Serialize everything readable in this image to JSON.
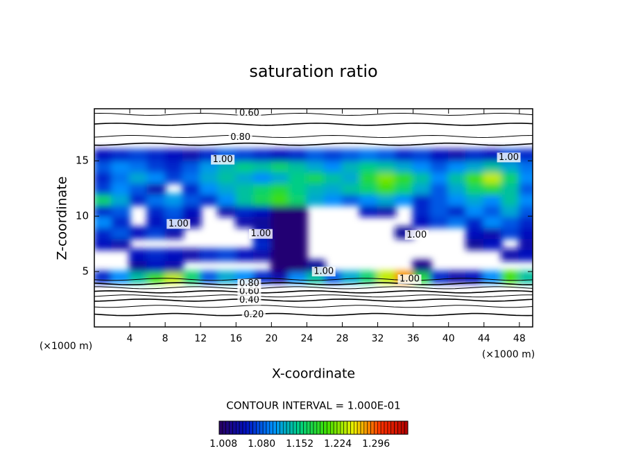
{
  "chart_data": {
    "type": "contour",
    "title": "saturation ratio",
    "xlabel": "X-coordinate",
    "ylabel": "Z-coordinate",
    "x_unit": "(×1000 m)",
    "xlim": [
      0,
      49.5
    ],
    "ylim": [
      0,
      19.7
    ],
    "xticks": [
      4,
      8,
      12,
      16,
      20,
      24,
      28,
      32,
      36,
      40,
      44,
      48
    ],
    "yticks": [
      5,
      10,
      15
    ],
    "grid_x": [
      1,
      3,
      5,
      7,
      9,
      11,
      13,
      15,
      17,
      19,
      21,
      23,
      25,
      27,
      29,
      31,
      33,
      35,
      37,
      39,
      41,
      43,
      45,
      47,
      49
    ],
    "grid_z": [
      4.5,
      5.5,
      6.5,
      7.5,
      8.5,
      9.5,
      10.5,
      11.5,
      12.5,
      13.5,
      14.5,
      15.5
    ],
    "field": [
      [
        1.06,
        1.1,
        1.14,
        1.2,
        1.24,
        1.16,
        1.08,
        1.12,
        1.1,
        1.06,
        1.04,
        1.1,
        1.14,
        1.08,
        1.12,
        1.16,
        1.24,
        1.28,
        1.18,
        1.06,
        1.04,
        1.05,
        1.1,
        1.2,
        1.14
      ],
      [
        null,
        null,
        1.03,
        1.05,
        1.04,
        null,
        null,
        null,
        null,
        null,
        1.01,
        1.01,
        1.03,
        null,
        null,
        null,
        null,
        null,
        1.02,
        null,
        null,
        null,
        null,
        null,
        null
      ],
      [
        null,
        null,
        1.05,
        1.06,
        1.05,
        1.04,
        1.06,
        1.07,
        1.05,
        1.04,
        1.01,
        1.01,
        null,
        null,
        null,
        null,
        null,
        null,
        null,
        null,
        null,
        null,
        null,
        1.04,
        1.05
      ],
      [
        1.05,
        1.04,
        null,
        null,
        null,
        null,
        null,
        null,
        null,
        1.06,
        1.01,
        1.01,
        null,
        null,
        null,
        null,
        null,
        null,
        null,
        null,
        null,
        1.03,
        1.05,
        null,
        1.04
      ],
      [
        1.06,
        1.08,
        1.05,
        1.07,
        1.04,
        null,
        null,
        null,
        null,
        1.04,
        1.01,
        1.01,
        null,
        null,
        null,
        null,
        null,
        1.03,
        null,
        null,
        null,
        1.05,
        1.04,
        1.07,
        1.05
      ],
      [
        1.1,
        1.06,
        null,
        1.05,
        1.07,
        1.04,
        null,
        null,
        1.04,
        1.03,
        1.01,
        1.01,
        null,
        null,
        null,
        null,
        null,
        null,
        1.05,
        1.07,
        1.09,
        1.06,
        1.1,
        1.08,
        1.06
      ],
      [
        1.06,
        1.08,
        null,
        1.06,
        1.08,
        1.05,
        null,
        1.04,
        1.06,
        1.05,
        1.01,
        1.01,
        null,
        null,
        null,
        1.05,
        1.04,
        null,
        1.06,
        1.08,
        1.06,
        1.1,
        1.08,
        1.12,
        1.08
      ],
      [
        1.16,
        1.12,
        1.06,
        1.09,
        1.11,
        1.08,
        1.06,
        1.1,
        1.14,
        1.17,
        1.2,
        1.16,
        1.12,
        1.1,
        1.08,
        1.1,
        1.12,
        1.1,
        1.06,
        1.08,
        1.1,
        1.12,
        1.1,
        1.14,
        1.1
      ],
      [
        1.07,
        1.1,
        1.08,
        1.04,
        null,
        1.06,
        1.1,
        1.12,
        1.14,
        1.16,
        1.18,
        1.15,
        1.13,
        1.12,
        1.14,
        1.16,
        1.2,
        1.16,
        1.12,
        1.08,
        1.12,
        1.16,
        1.18,
        1.14,
        1.08
      ],
      [
        1.06,
        1.09,
        1.12,
        1.1,
        1.07,
        1.09,
        1.12,
        1.14,
        1.12,
        1.1,
        1.12,
        1.15,
        1.17,
        1.14,
        1.12,
        1.18,
        1.22,
        1.19,
        1.14,
        1.1,
        1.14,
        1.2,
        1.24,
        1.16,
        1.1
      ],
      [
        1.08,
        1.1,
        1.09,
        1.07,
        1.06,
        1.08,
        1.11,
        1.13,
        1.15,
        1.14,
        1.16,
        1.14,
        1.12,
        1.1,
        1.13,
        1.15,
        1.14,
        1.12,
        1.1,
        1.08,
        1.1,
        1.12,
        1.14,
        1.12,
        1.09
      ],
      [
        1.05,
        1.06,
        1.07,
        1.06,
        1.05,
        1.04,
        1.06,
        1.08,
        1.07,
        1.06,
        1.05,
        1.06,
        1.08,
        1.07,
        1.08,
        1.09,
        1.08,
        1.06,
        1.07,
        1.05,
        1.04,
        1.06,
        1.05,
        1.07,
        1.06
      ]
    ],
    "colormap": [
      "#2a0060",
      "#0010c0",
      "#0090ff",
      "#00d080",
      "#40e000",
      "#f0f000",
      "#ff3000",
      "#b00000"
    ],
    "contour_lines": [
      {
        "level": 0.2,
        "z": 1.12
      },
      {
        "level": 0.3,
        "z": 1.86
      },
      {
        "level": 0.4,
        "z": 2.42
      },
      {
        "level": 0.5,
        "z": 2.8
      },
      {
        "level": 0.6,
        "z": 3.17
      },
      {
        "level": 0.7,
        "z": 3.54
      },
      {
        "level": 0.8,
        "z": 3.9
      },
      {
        "level": 0.9,
        "z": 4.3
      },
      {
        "level": 0.9,
        "z": 16.5
      },
      {
        "level": 0.8,
        "z": 17.2
      },
      {
        "level": 0.7,
        "z": 18.3
      },
      {
        "level": 0.6,
        "z": 19.2
      }
    ],
    "contour_labels": [
      {
        "text": "0.20",
        "x": 18,
        "z": 1.1
      },
      {
        "text": "0.40",
        "x": 17.5,
        "z": 2.4
      },
      {
        "text": "0.60",
        "x": 17.5,
        "z": 3.2
      },
      {
        "text": "0.80",
        "x": 17.5,
        "z": 3.9
      },
      {
        "text": "0.60",
        "x": 17.5,
        "z": 19.3
      },
      {
        "text": "0.80",
        "x": 16.5,
        "z": 17.1
      },
      {
        "text": "1.00",
        "x": 14.5,
        "z": 15.1
      },
      {
        "text": "1.00",
        "x": 9.5,
        "z": 9.3
      },
      {
        "text": "1.00",
        "x": 18.8,
        "z": 8.4
      },
      {
        "text": "1.00",
        "x": 36.4,
        "z": 8.3
      },
      {
        "text": "1.00",
        "x": 25.9,
        "z": 5.0
      },
      {
        "text": "1.00",
        "x": 35.6,
        "z": 4.3
      },
      {
        "text": "1.00",
        "x": 46.8,
        "z": 15.3
      }
    ],
    "contour_interval_text": "CONTOUR INTERVAL = 1.000E-01",
    "colorbar": {
      "lim": [
        1.0,
        1.356
      ],
      "ticks": [
        1.008,
        {
          "value": 1.08,
          "label": "1.080"
        },
        {
          "value": 1.152,
          "label": "1.152"
        },
        {
          "value": 1.224,
          "label": "1.224"
        },
        {
          "value": 1.296,
          "label": "1.296"
        }
      ]
    }
  }
}
